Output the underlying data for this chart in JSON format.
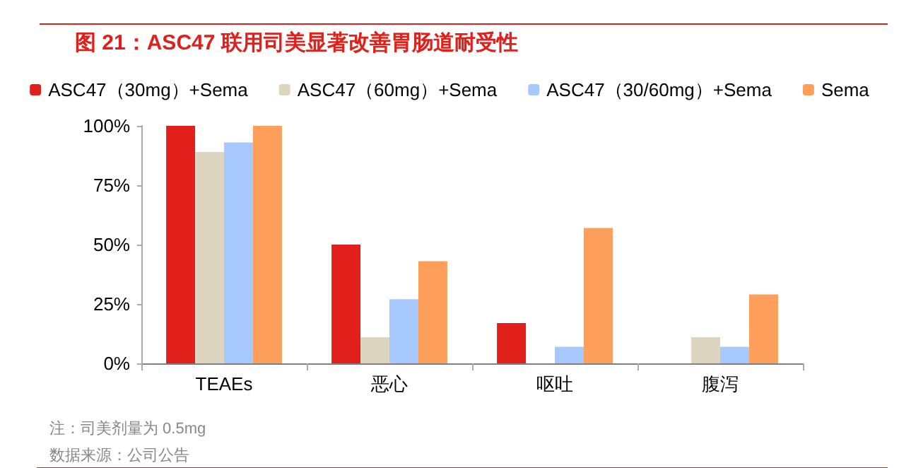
{
  "chart_data": {
    "type": "bar",
    "title": "图 21：ASC47 联用司美显著改善胃肠道耐受性",
    "categories": [
      "TEAEs",
      "恶心",
      "呕吐",
      "腹泻"
    ],
    "series": [
      {
        "name": "ASC47（30mg）+Sema",
        "color": "#e2201b",
        "values": [
          100,
          50,
          17,
          0
        ]
      },
      {
        "name": "ASC47（60mg）+Sema",
        "color": "#ddd5bf",
        "values": [
          89,
          11,
          0,
          11
        ]
      },
      {
        "name": "ASC47（30/60mg）+Sema",
        "color": "#a8c9fd",
        "values": [
          93,
          27,
          7,
          7
        ]
      },
      {
        "name": "Sema",
        "color": "#fd9e5a",
        "values": [
          100,
          43,
          57,
          29
        ]
      }
    ],
    "ylim": [
      0,
      100
    ],
    "yticks": [
      {
        "value": 0,
        "label": "0%"
      },
      {
        "value": 25,
        "label": "25%"
      },
      {
        "value": 50,
        "label": "50%"
      },
      {
        "value": 75,
        "label": "75%"
      },
      {
        "value": 100,
        "label": "100%"
      }
    ],
    "grid": false,
    "legend": "top",
    "annotations": [
      "注：司美剂量为 0.5mg",
      "数据来源：公司公告"
    ]
  }
}
